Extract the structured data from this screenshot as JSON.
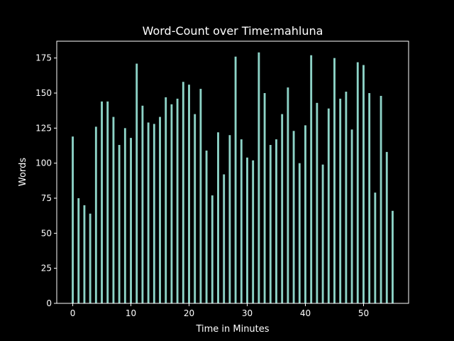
{
  "chart_data": {
    "type": "bar",
    "title": "Word-Count over Time:mahluna",
    "xlabel": "Time in Minutes",
    "ylabel": "Words",
    "xlim": [
      -2.75,
      57.75
    ],
    "ylim": [
      0,
      187
    ],
    "xticks": [
      0,
      10,
      20,
      30,
      40,
      50
    ],
    "yticks": [
      0,
      25,
      50,
      75,
      100,
      125,
      150,
      175
    ],
    "grid": false,
    "colors": {
      "background": "#000000",
      "bar": "#8dd3c7",
      "axes": "#ffffff",
      "text": "#ffffff"
    },
    "x": [
      0,
      1,
      2,
      3,
      4,
      5,
      6,
      7,
      8,
      9,
      10,
      11,
      12,
      13,
      14,
      15,
      16,
      17,
      18,
      19,
      20,
      21,
      22,
      23,
      24,
      25,
      26,
      27,
      28,
      29,
      30,
      31,
      32,
      33,
      34,
      35,
      36,
      37,
      38,
      39,
      40,
      41,
      42,
      43,
      44,
      45,
      46,
      47,
      48,
      49,
      50,
      51,
      52,
      53,
      54,
      55
    ],
    "values": [
      119,
      75,
      70,
      64,
      126,
      144,
      144,
      133,
      113,
      125,
      118,
      171,
      141,
      129,
      128,
      133,
      147,
      142,
      146,
      158,
      156,
      135,
      153,
      109,
      77,
      122,
      92,
      120,
      176,
      117,
      104,
      102,
      179,
      150,
      113,
      117,
      135,
      154,
      123,
      100,
      127,
      177,
      143,
      99,
      139,
      175,
      146,
      151,
      124,
      172,
      170,
      150,
      79,
      148,
      108,
      66
    ]
  }
}
